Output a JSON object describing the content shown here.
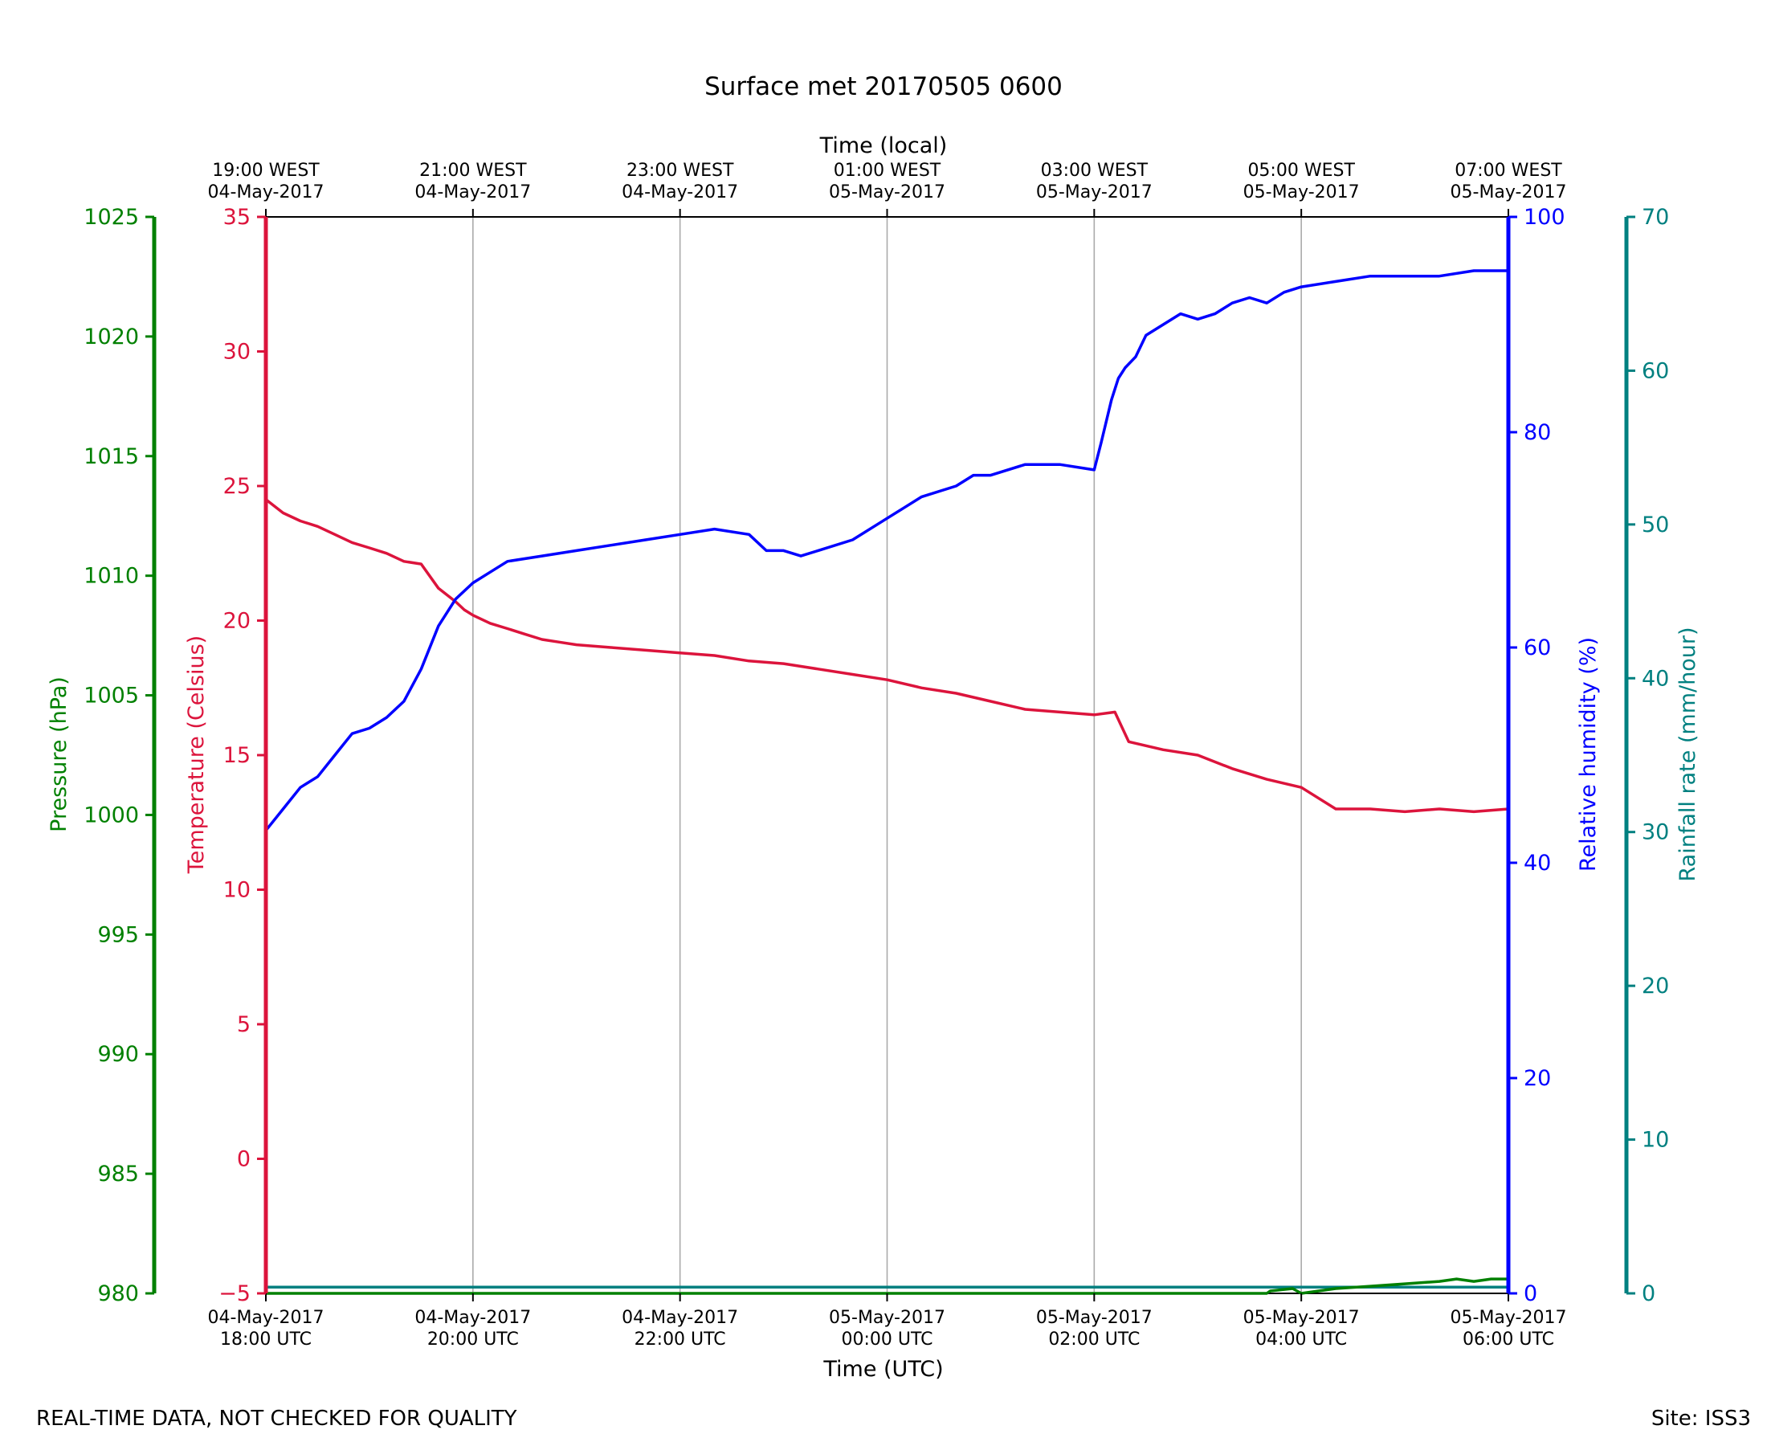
{
  "chart_data": {
    "type": "line",
    "title": "Surface met 20170505 0600",
    "xlabel": "Time (UTC)",
    "x2label": "Time (local)",
    "x_ticks_utc": [
      [
        "04-May-2017",
        "18:00 UTC"
      ],
      [
        "04-May-2017",
        "20:00 UTC"
      ],
      [
        "04-May-2017",
        "22:00 UTC"
      ],
      [
        "05-May-2017",
        "00:00 UTC"
      ],
      [
        "05-May-2017",
        "02:00 UTC"
      ],
      [
        "05-May-2017",
        "04:00 UTC"
      ],
      [
        "05-May-2017",
        "06:00 UTC"
      ]
    ],
    "x_ticks_local": [
      [
        "19:00 WEST",
        "04-May-2017"
      ],
      [
        "21:00 WEST",
        "04-May-2017"
      ],
      [
        "23:00 WEST",
        "04-May-2017"
      ],
      [
        "01:00 WEST",
        "05-May-2017"
      ],
      [
        "03:00 WEST",
        "05-May-2017"
      ],
      [
        "05:00 WEST",
        "05-May-2017"
      ],
      [
        "07:00 WEST",
        "05-May-2017"
      ]
    ],
    "x_range": [
      "2017-05-04 18:00 UTC",
      "2017-05-05 06:00 UTC"
    ],
    "grid": "vertical",
    "axes": {
      "pressure": {
        "label": "Pressure (hPa)",
        "range": [
          980,
          1025
        ],
        "ticks": [
          980,
          985,
          990,
          995,
          1000,
          1005,
          1010,
          1015,
          1020,
          1025
        ],
        "color": "#008000",
        "side": "left-outer"
      },
      "temperature": {
        "label": "Temperature (Celsius)",
        "range": [
          -5,
          35
        ],
        "ticks": [
          -5,
          0,
          5,
          10,
          15,
          20,
          25,
          30,
          35
        ],
        "color": "#dc143c",
        "side": "left"
      },
      "humidity": {
        "label": "Relative humidity (%)",
        "range": [
          0,
          100
        ],
        "ticks": [
          0,
          20,
          40,
          60,
          80,
          100
        ],
        "color": "#0000ff",
        "side": "right"
      },
      "rainfall": {
        "label": "Rainfall rate (mm/hour)",
        "range": [
          0,
          70
        ],
        "ticks": [
          0,
          10,
          20,
          30,
          40,
          50,
          60,
          70
        ],
        "color": "#008080",
        "side": "right-outer"
      }
    },
    "series": [
      {
        "axis": "temperature",
        "x_hours_utc": [
          "18:00",
          "18:10",
          "18:20",
          "18:30",
          "18:40",
          "18:50",
          "19:00",
          "19:10",
          "19:20",
          "19:30",
          "19:40",
          "19:50",
          "19:55",
          "20:00",
          "20:10",
          "20:20",
          "20:30",
          "20:40",
          "20:50",
          "21:00",
          "21:20",
          "21:40",
          "22:00",
          "22:20",
          "22:40",
          "23:00",
          "23:20",
          "23:40",
          "00:00",
          "00:20",
          "00:40",
          "01:00",
          "01:20",
          "01:40",
          "02:00",
          "02:12",
          "02:20",
          "02:40",
          "03:00",
          "03:20",
          "03:40",
          "04:00",
          "04:20",
          "04:40",
          "05:00",
          "05:20",
          "05:40",
          "06:00"
        ],
        "values": [
          24.5,
          24.0,
          23.7,
          23.5,
          23.2,
          22.9,
          22.7,
          22.5,
          22.2,
          22.1,
          21.2,
          20.7,
          20.4,
          20.2,
          19.9,
          19.7,
          19.5,
          19.3,
          19.2,
          19.1,
          19.0,
          18.9,
          18.8,
          18.7,
          18.5,
          18.4,
          18.2,
          18.0,
          17.8,
          17.5,
          17.3,
          17.0,
          16.7,
          16.6,
          16.5,
          16.6,
          15.5,
          15.2,
          15.0,
          14.5,
          14.1,
          13.8,
          13.0,
          13.0,
          12.9,
          13.0,
          12.9,
          13.0
        ]
      },
      {
        "axis": "humidity",
        "x_hours_utc": [
          "18:00",
          "18:10",
          "18:20",
          "18:30",
          "18:40",
          "18:50",
          "19:00",
          "19:10",
          "19:20",
          "19:30",
          "19:40",
          "19:50",
          "20:00",
          "20:10",
          "20:20",
          "20:40",
          "21:00",
          "21:20",
          "21:40",
          "22:00",
          "22:20",
          "22:40",
          "22:50",
          "23:00",
          "23:10",
          "23:20",
          "23:40",
          "00:00",
          "00:10",
          "00:20",
          "00:40",
          "00:50",
          "01:00",
          "01:20",
          "01:40",
          "02:00",
          "02:04",
          "02:10",
          "02:14",
          "02:18",
          "02:24",
          "02:30",
          "02:40",
          "02:50",
          "03:00",
          "03:10",
          "03:20",
          "03:30",
          "03:40",
          "03:50",
          "04:00",
          "04:20",
          "04:40",
          "05:00",
          "05:20",
          "05:40",
          "06:00"
        ],
        "values": [
          43,
          45,
          47,
          48,
          50,
          52,
          52.5,
          53.5,
          55,
          58,
          62,
          64.5,
          66,
          67,
          68,
          68.5,
          69,
          69.5,
          70,
          70.5,
          71,
          70.5,
          69,
          69,
          68.5,
          69,
          70,
          72,
          73,
          74,
          75,
          76,
          76,
          77,
          77,
          76.5,
          79,
          83,
          85,
          86,
          87,
          89,
          90,
          91,
          90.5,
          91,
          92,
          92.5,
          92,
          93,
          93.5,
          94,
          94.5,
          94.5,
          94.5,
          95,
          95
        ]
      },
      {
        "axis": "rainfall",
        "x_hours_utc": [
          "18:00",
          "06:00"
        ],
        "values": [
          0.4,
          0.4
        ]
      },
      {
        "axis": "pressure",
        "x_hours_utc": [
          "18:00",
          "02:00",
          "03:40",
          "03:42",
          "03:55",
          "04:00",
          "04:20",
          "04:40",
          "05:00",
          "05:20",
          "05:30",
          "05:40",
          "05:50",
          "06:00"
        ],
        "values": [
          980,
          980,
          980,
          980.1,
          980.2,
          980,
          980.2,
          980.3,
          980.4,
          980.5,
          980.6,
          980.5,
          980.6,
          980.6
        ]
      }
    ]
  },
  "footer": {
    "left": "REAL-TIME DATA, NOT CHECKED FOR QUALITY",
    "right": "Site: ISS3"
  }
}
